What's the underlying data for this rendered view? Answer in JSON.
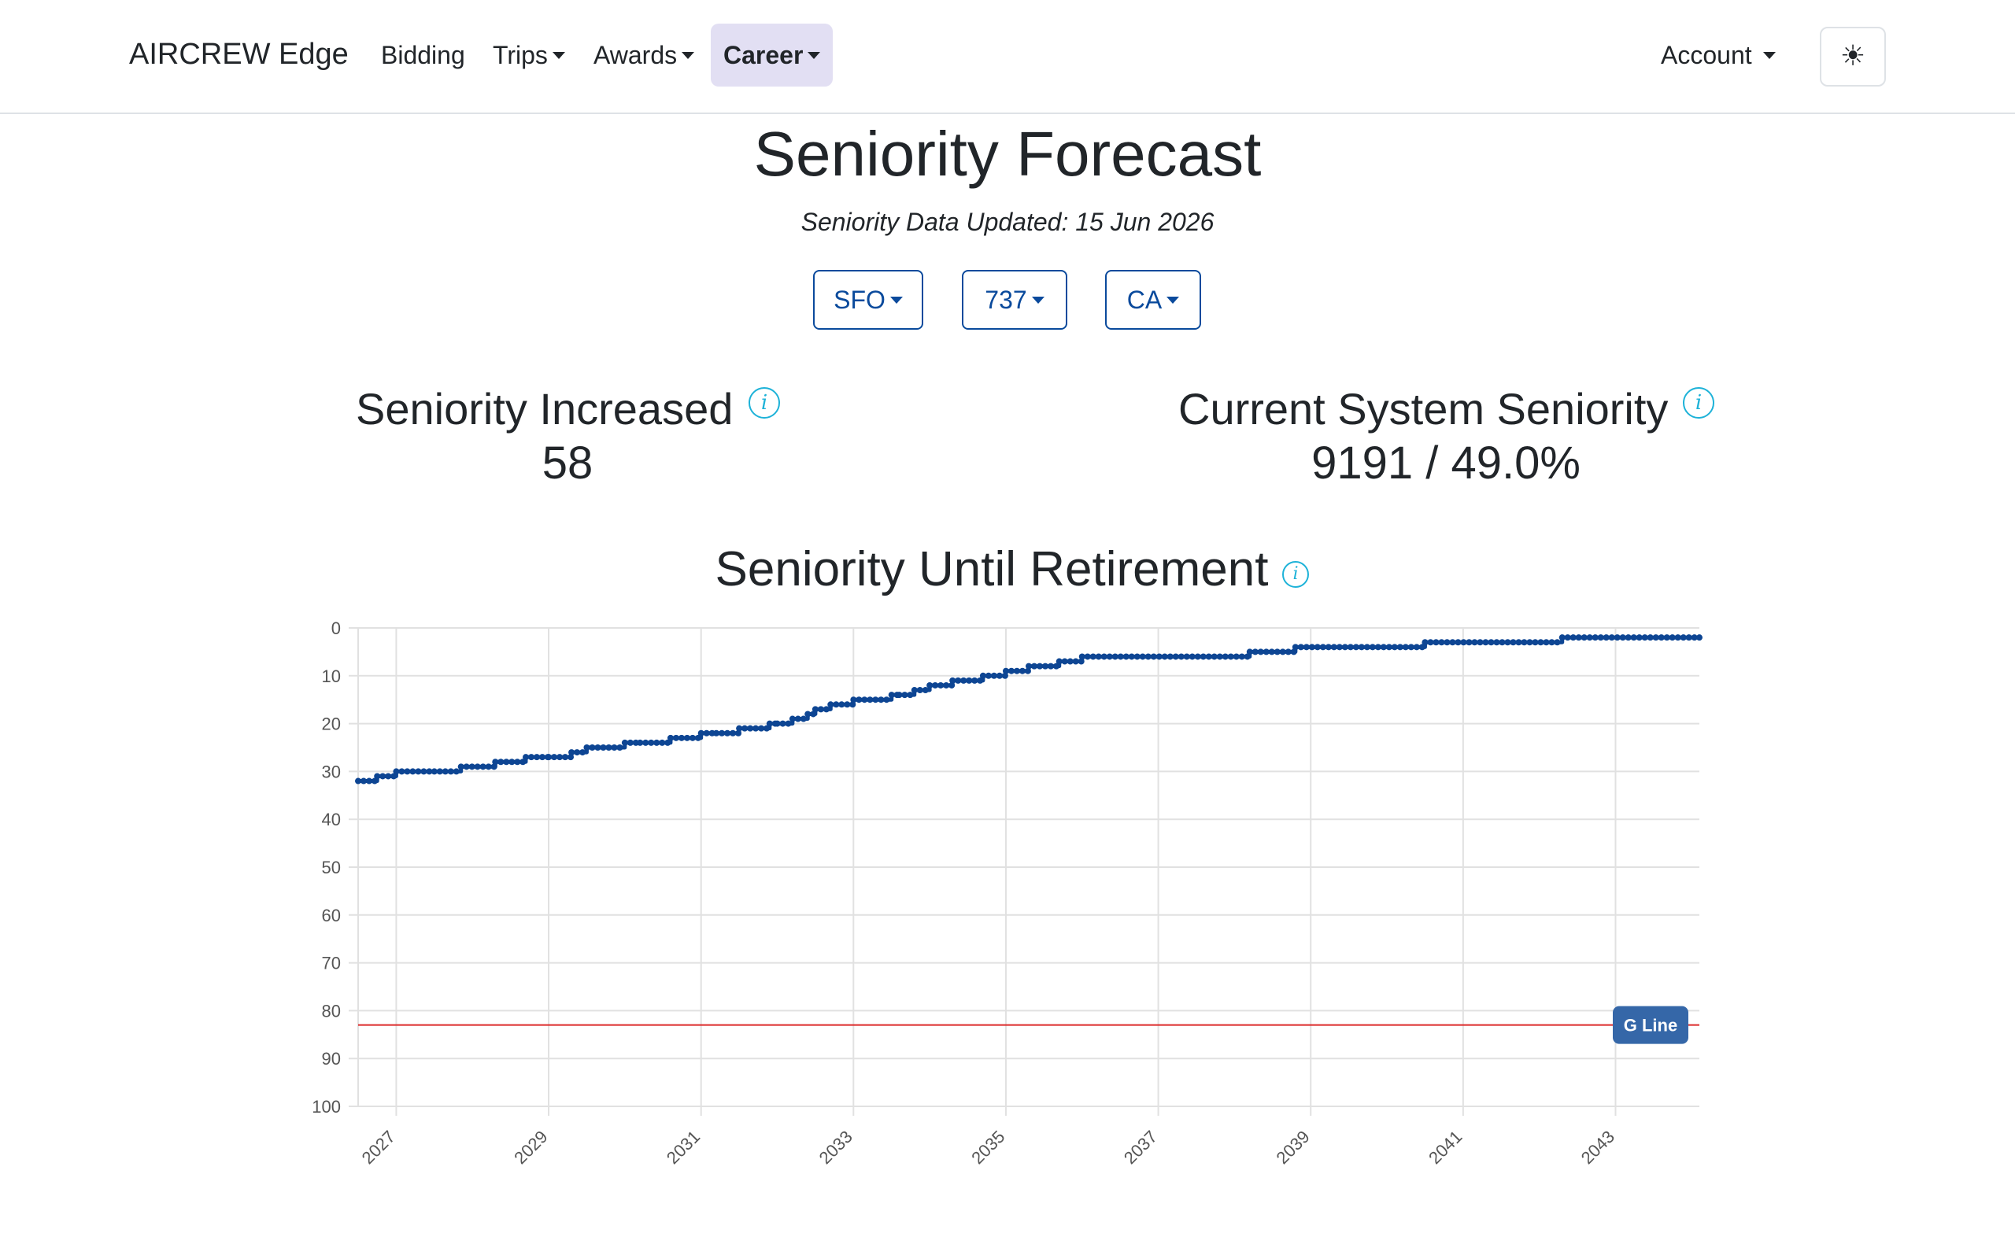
{
  "navbar": {
    "brand": "AIRCREW Edge",
    "items": [
      {
        "label": "Bidding"
      },
      {
        "label": "Trips"
      },
      {
        "label": "Awards"
      },
      {
        "label": "Career"
      }
    ],
    "account": "Account",
    "theme_icon": "☀"
  },
  "page": {
    "title": "Seniority Forecast",
    "updated": "Seniority Data Updated: 15 Jun 2026"
  },
  "filters": [
    {
      "label": "SFO"
    },
    {
      "label": "737"
    },
    {
      "label": "CA"
    }
  ],
  "stats": {
    "increased": {
      "label": "Seniority Increased",
      "value": "58"
    },
    "system": {
      "label": "Current System Seniority",
      "value": "9191 / 49.0%"
    }
  },
  "chart_title": "Seniority Until Retirement",
  "colors": {
    "series": "#0d4593",
    "gline": "#dc2a2a",
    "gline_badge": "#3567a8",
    "info": "#1db2d8",
    "grid": "#e1e1e1"
  },
  "chart_data": {
    "type": "line",
    "title": "Seniority Until Retirement",
    "y_reversed": true,
    "ylim": [
      0,
      100
    ],
    "y_ticks": [
      0,
      10,
      20,
      30,
      40,
      50,
      60,
      70,
      80,
      90,
      100
    ],
    "xlim": [
      2026.5,
      2044.1
    ],
    "x_ticks": [
      "2027",
      "2029",
      "2031",
      "2033",
      "2035",
      "2037",
      "2039",
      "2041",
      "2043"
    ],
    "grid": true,
    "series": [
      {
        "x": [
          2026.5,
          2026.75,
          2027.0,
          2027.5,
          2027.85,
          2028.3,
          2028.7,
          2029.0,
          2029.3,
          2029.5,
          2030.0,
          2030.2,
          2030.6,
          2031.0,
          2031.2,
          2031.5,
          2031.9,
          2032.0,
          2032.2,
          2032.4,
          2032.5,
          2032.7,
          2033.0,
          2033.5,
          2033.6,
          2033.8,
          2034.0,
          2034.3,
          2034.7,
          2035.0,
          2035.3,
          2035.7,
          2036.0,
          2038.2,
          2038.8,
          2040.5,
          2042.3,
          2044.1
        ],
        "values": [
          32,
          31,
          30,
          30,
          29,
          28,
          27,
          27,
          26,
          25,
          24,
          24,
          23,
          22,
          22,
          21,
          20,
          20,
          19,
          18,
          17,
          16,
          15,
          14,
          14,
          13,
          12,
          11,
          10,
          9,
          8,
          7,
          6,
          5,
          4,
          3,
          2,
          2
        ]
      }
    ],
    "reference_lines": [
      {
        "label": "G Line",
        "value": 83
      }
    ]
  }
}
